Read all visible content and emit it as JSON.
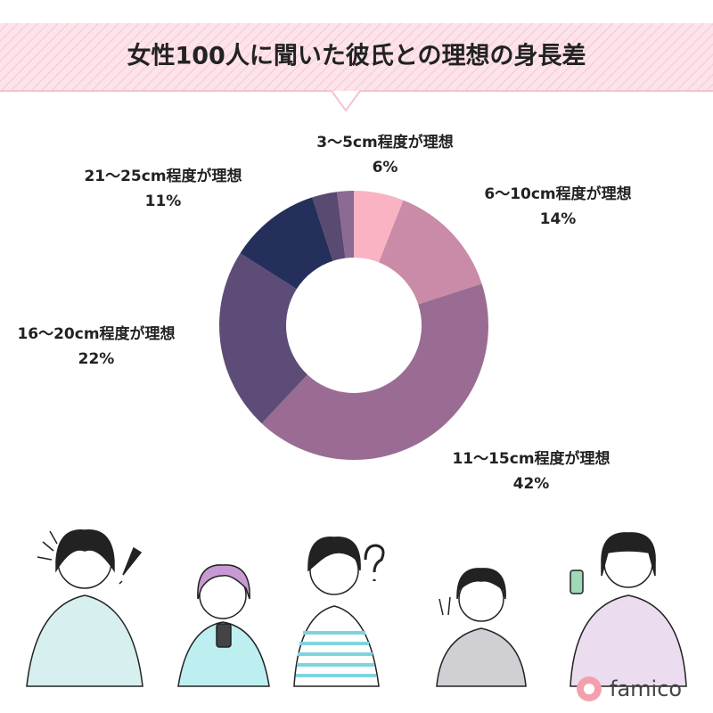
{
  "chart_data": {
    "type": "donut",
    "title": "女性100人に聞いた彼氏との理想の身長差",
    "categories": [
      "3〜5cm程度が理想",
      "6〜10cm程度が理想",
      "11〜15cm程度が理想",
      "16〜20cm程度が理想",
      "21〜25cm程度が理想",
      null,
      null
    ],
    "values": [
      6,
      14,
      42,
      22,
      11,
      3,
      2
    ],
    "value_labels": [
      "6%",
      "14%",
      "42%",
      "22%",
      "11%",
      null,
      null
    ],
    "colors": [
      "#f9b3c2",
      "#c98ba8",
      "#9a6c94",
      "#5e4c78",
      "#24305b",
      "#594a72",
      "#8b6a93"
    ]
  },
  "logo": "famico"
}
